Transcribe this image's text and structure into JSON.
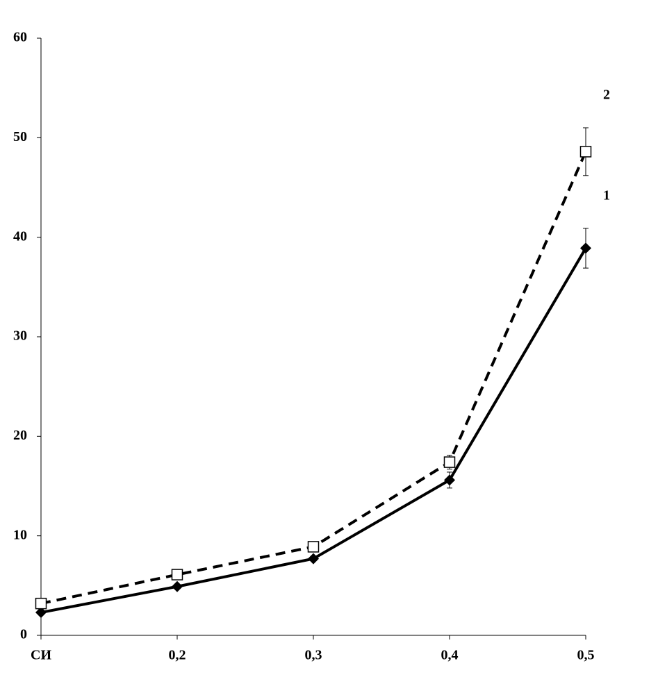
{
  "chart_data": {
    "type": "line",
    "categories": [
      "СИ",
      "0,2",
      "0,3",
      "0,4",
      "0,5"
    ],
    "series": [
      {
        "name": "1",
        "color": "#000000",
        "dashed": false,
        "marker": "diamond",
        "values": [
          2.3,
          4.9,
          7.7,
          15.6,
          38.9
        ],
        "errors": [
          null,
          null,
          null,
          0.8,
          2.0
        ]
      },
      {
        "name": "2",
        "color": "#000000",
        "dashed": true,
        "marker": "square",
        "values": [
          3.2,
          6.1,
          8.9,
          17.4,
          48.6
        ],
        "errors": [
          null,
          null,
          null,
          0.7,
          2.4
        ]
      }
    ],
    "ylim": [
      0,
      60
    ],
    "yticks": [
      0,
      10,
      20,
      30,
      40,
      50,
      60
    ],
    "grid": false
  }
}
